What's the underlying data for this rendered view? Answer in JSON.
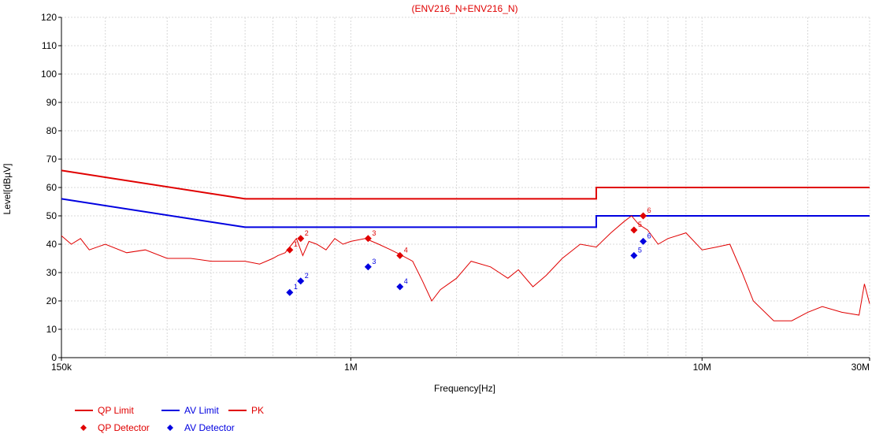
{
  "chart_data": {
    "type": "line",
    "title": "(ENV216_N+ENV216_N)",
    "xlabel": "Frequency[Hz]",
    "ylabel": "Level[dBµV]",
    "xscale": "log",
    "xlim": [
      150000,
      30000000
    ],
    "ylim": [
      0,
      120
    ],
    "x_ticks": [
      {
        "value": 150000,
        "label": "150k"
      },
      {
        "value": 1000000,
        "label": "1M"
      },
      {
        "value": 10000000,
        "label": "10M"
      },
      {
        "value": 30000000,
        "label": "30M"
      }
    ],
    "y_ticks": [
      0,
      10,
      20,
      30,
      40,
      50,
      60,
      70,
      80,
      90,
      100,
      110,
      120
    ],
    "grid": true,
    "series": [
      {
        "name": "QP Limit",
        "color": "#e00000",
        "kind": "line",
        "x": [
          150000,
          500000,
          500000,
          5000000,
          5000000,
          30000000
        ],
        "y": [
          66,
          56,
          56,
          56,
          60,
          60
        ]
      },
      {
        "name": "AV Limit",
        "color": "#0000e0",
        "kind": "line",
        "x": [
          150000,
          500000,
          500000,
          5000000,
          5000000,
          30000000
        ],
        "y": [
          56,
          46,
          46,
          46,
          50,
          50
        ]
      },
      {
        "name": "PK",
        "color": "#e00000",
        "kind": "line",
        "x": [
          150000,
          160000,
          170000,
          180000,
          200000,
          230000,
          260000,
          300000,
          350000,
          400000,
          450000,
          500000,
          550000,
          600000,
          620000,
          650000,
          680000,
          700000,
          730000,
          760000,
          800000,
          850000,
          900000,
          950000,
          1000000,
          1100000,
          1200000,
          1300000,
          1350000,
          1400000,
          1500000,
          1600000,
          1700000,
          1800000,
          2000000,
          2200000,
          2500000,
          2800000,
          3000000,
          3300000,
          3600000,
          4000000,
          4500000,
          5000000,
          5500000,
          6000000,
          6300000,
          6600000,
          7000000,
          7500000,
          8000000,
          9000000,
          10000000,
          11000000,
          12000000,
          13000000,
          14000000,
          16000000,
          18000000,
          20000000,
          22000000,
          25000000,
          28000000,
          29000000,
          30000000
        ],
        "y": [
          43,
          40,
          42,
          38,
          40,
          37,
          38,
          35,
          35,
          34,
          34,
          34,
          33,
          35,
          36,
          37,
          40,
          42,
          36,
          41,
          40,
          38,
          42,
          40,
          41,
          42,
          40,
          38,
          37,
          36,
          34,
          27,
          20,
          24,
          28,
          34,
          32,
          28,
          31,
          25,
          29,
          35,
          40,
          39,
          44,
          48,
          50,
          47,
          45,
          40,
          42,
          44,
          38,
          39,
          40,
          30,
          20,
          13,
          13,
          16,
          18,
          16,
          15,
          26,
          19
        ]
      }
    ],
    "detectors": [
      {
        "name": "QP Detector",
        "color": "#e00000",
        "shape": "diamond",
        "points": [
          {
            "label": "1",
            "x": 670000,
            "y": 38
          },
          {
            "label": "2",
            "x": 720000,
            "y": 42
          },
          {
            "label": "3",
            "x": 1120000,
            "y": 42
          },
          {
            "label": "4",
            "x": 1380000,
            "y": 36
          },
          {
            "label": "5",
            "x": 6400000,
            "y": 45
          },
          {
            "label": "6",
            "x": 6800000,
            "y": 50
          }
        ]
      },
      {
        "name": "AV Detector",
        "color": "#0000e0",
        "shape": "diamond",
        "points": [
          {
            "label": "1",
            "x": 670000,
            "y": 23
          },
          {
            "label": "2",
            "x": 720000,
            "y": 27
          },
          {
            "label": "3",
            "x": 1120000,
            "y": 32
          },
          {
            "label": "4",
            "x": 1380000,
            "y": 25
          },
          {
            "label": "5",
            "x": 6400000,
            "y": 36
          },
          {
            "label": "6",
            "x": 6800000,
            "y": 41
          }
        ]
      }
    ],
    "legend": {
      "placement": "bottom-left",
      "items": [
        {
          "label": "QP Limit",
          "color": "#e00000",
          "kind": "line"
        },
        {
          "label": "AV Limit",
          "color": "#0000e0",
          "kind": "line"
        },
        {
          "label": "PK",
          "color": "#e00000",
          "kind": "line"
        },
        {
          "label": "QP Detector",
          "color": "#e00000",
          "kind": "diamond"
        },
        {
          "label": "AV Detector",
          "color": "#0000e0",
          "kind": "diamond"
        }
      ]
    }
  }
}
